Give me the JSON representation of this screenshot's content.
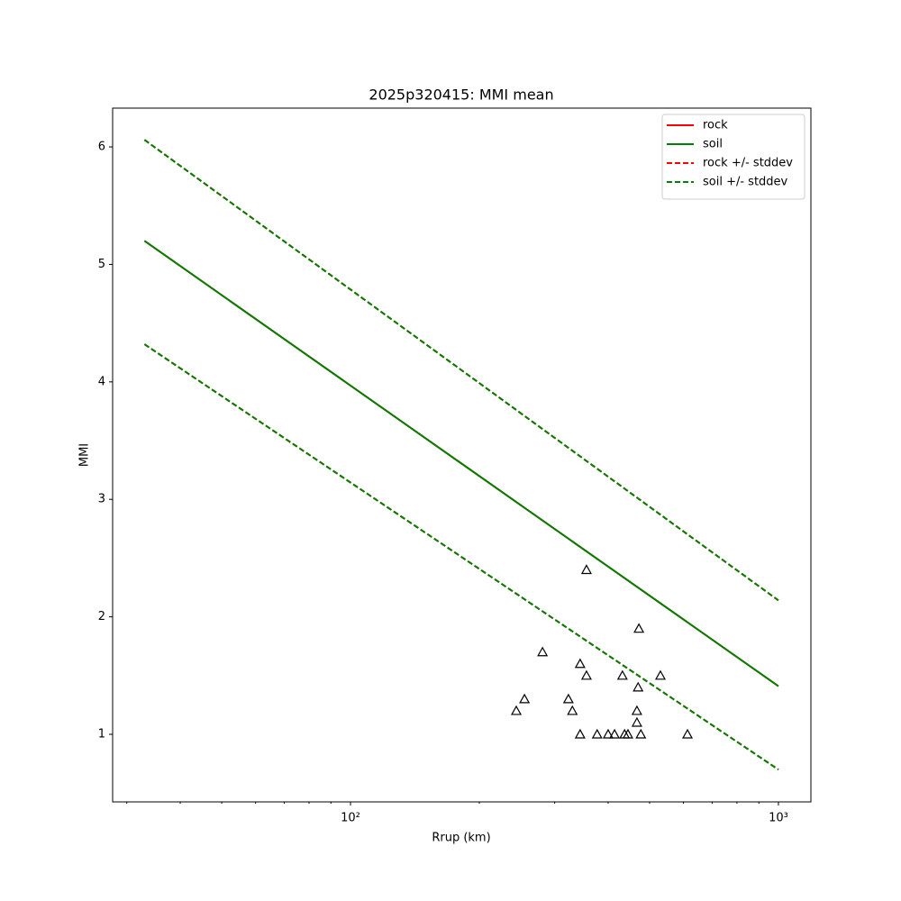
{
  "chart_data": {
    "type": "line",
    "title": "2025p320415: MMI mean",
    "x_label": "Rrup (km)",
    "y_label": "MMI",
    "x_scale": "log",
    "xlim": [
      27.8,
      1191
    ],
    "ylim": [
      0.425,
      6.33
    ],
    "xticks": [
      {
        "value": 100,
        "label": "10²"
      },
      {
        "value": 1000,
        "label": "10³"
      }
    ],
    "xminorticks": [
      30,
      40,
      50,
      60,
      70,
      80,
      90,
      200,
      300,
      400,
      500,
      600,
      700,
      800,
      900
    ],
    "yticks": [
      1,
      2,
      3,
      4,
      5,
      6
    ],
    "legend": "upper right",
    "series": [
      {
        "name": "rock",
        "color": "#ff0000",
        "linestyle": "solid",
        "x": [
          33,
          1000
        ],
        "values": [
          5.2,
          1.41
        ]
      },
      {
        "name": "soil",
        "color": "#008000",
        "linestyle": "solid",
        "x": [
          33,
          1000
        ],
        "values": [
          5.2,
          1.41
        ]
      },
      {
        "name": "rock +/- stddev",
        "color": "#ff0000",
        "linestyle": "dashed",
        "x": [
          33,
          1000
        ],
        "upper": [
          6.06,
          2.14
        ],
        "lower": [
          4.32,
          0.7
        ]
      },
      {
        "name": "soil +/- stddev",
        "color": "#008000",
        "linestyle": "dashed",
        "x": [
          33,
          1000
        ],
        "upper": [
          6.06,
          2.14
        ],
        "lower": [
          4.32,
          0.7
        ]
      }
    ],
    "points": {
      "marker": "triangle",
      "color": "#000000",
      "x": [
        356,
        472,
        281,
        344,
        356,
        432,
        530,
        470,
        255,
        323,
        244,
        330,
        467,
        467,
        344,
        377,
        400,
        414,
        437,
        445,
        477,
        613
      ],
      "values": [
        2.4,
        1.9,
        1.7,
        1.6,
        1.5,
        1.5,
        1.5,
        1.4,
        1.3,
        1.3,
        1.2,
        1.2,
        1.2,
        1.1,
        1.0,
        1.0,
        1.0,
        1.0,
        1.0,
        1.0,
        1.0,
        1.0
      ]
    }
  }
}
